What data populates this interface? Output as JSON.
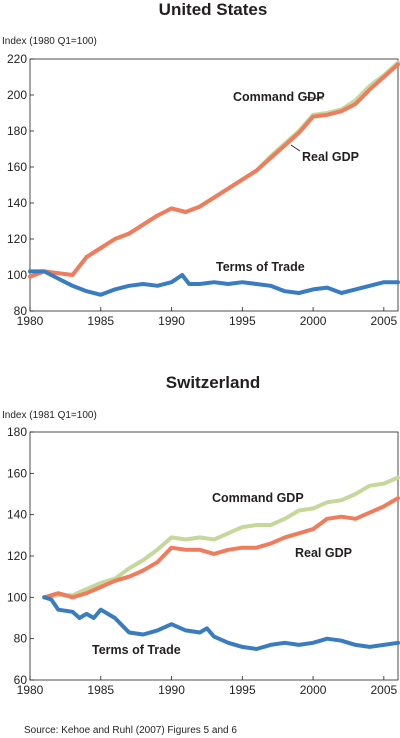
{
  "source_note": "Source: Kehoe and Ruhl (2007) Figures 5 and 6",
  "colors": {
    "command_gdp": "#c5d89a",
    "real_gdp": "#f07c5e",
    "terms_of_trade": "#3a7cc0",
    "axis": "#231f20"
  },
  "chart_data": [
    {
      "type": "line",
      "title": "United States",
      "ylabel": "Index (1980 Q1=100)",
      "xlim": [
        1980,
        2006
      ],
      "ylim": [
        80,
        220
      ],
      "x_ticks": [
        1980,
        1985,
        1990,
        1995,
        2000,
        2005
      ],
      "y_ticks": [
        80,
        100,
        120,
        140,
        160,
        180,
        200,
        220
      ],
      "grid": false,
      "series": [
        {
          "name": "Command GDP",
          "key": "command_gdp",
          "x": [
            1980,
            1981,
            1982,
            1983,
            1984,
            1985,
            1986,
            1987,
            1988,
            1989,
            1990,
            1991,
            1992,
            1993,
            1994,
            1995,
            1996,
            1997,
            1998,
            1999,
            2000,
            2001,
            2002,
            2003,
            2004,
            2005,
            2006
          ],
          "y": [
            99,
            102,
            101,
            100,
            110,
            115,
            120,
            123,
            128,
            133,
            137,
            135,
            138,
            143,
            148,
            153,
            158,
            166,
            173,
            180,
            189,
            190,
            192,
            197,
            205,
            211,
            218
          ]
        },
        {
          "name": "Real GDP",
          "key": "real_gdp",
          "x": [
            1980,
            1981,
            1982,
            1983,
            1984,
            1985,
            1986,
            1987,
            1988,
            1989,
            1990,
            1991,
            1992,
            1993,
            1994,
            1995,
            1996,
            1997,
            1998,
            1999,
            2000,
            2001,
            2002,
            2003,
            2004,
            2005,
            2006
          ],
          "y": [
            99,
            102,
            101,
            100,
            110,
            115,
            120,
            123,
            128,
            133,
            137,
            135,
            138,
            143,
            148,
            153,
            158,
            165,
            172,
            179,
            188,
            189,
            191,
            195,
            203,
            210,
            217
          ]
        },
        {
          "name": "Terms of Trade",
          "key": "terms_of_trade",
          "x": [
            1980,
            1981,
            1982,
            1983,
            1984,
            1985,
            1986,
            1987,
            1988,
            1989,
            1990,
            1990.75,
            1991.25,
            1992,
            1993,
            1994,
            1995,
            1996,
            1997,
            1998,
            1999,
            2000,
            2001,
            2002,
            2003,
            2004,
            2005,
            2006
          ],
          "y": [
            102,
            102,
            98,
            94,
            91,
            89,
            92,
            94,
            95,
            94,
            96,
            100,
            95,
            95,
            96,
            95,
            96,
            95,
            94,
            91,
            90,
            92,
            93,
            90,
            92,
            94,
            96,
            96
          ]
        }
      ],
      "annotations": [
        {
          "text": "Command GDP",
          "series": "command_gdp"
        },
        {
          "text": "Real GDP",
          "series": "real_gdp"
        },
        {
          "text": "Terms of Trade",
          "series": "terms_of_trade"
        }
      ]
    },
    {
      "type": "line",
      "title": "Switzerland",
      "ylabel": "Index (1981 Q1=100)",
      "xlim": [
        1980,
        2006
      ],
      "ylim": [
        60,
        180
      ],
      "x_ticks": [
        1980,
        1985,
        1990,
        1995,
        2000,
        2005
      ],
      "y_ticks": [
        60,
        80,
        100,
        120,
        140,
        160,
        180
      ],
      "grid": false,
      "series": [
        {
          "name": "Command GDP",
          "key": "command_gdp",
          "x": [
            1981,
            1982,
            1983,
            1984,
            1985,
            1986,
            1987,
            1988,
            1989,
            1990,
            1991,
            1992,
            1993,
            1994,
            1995,
            1996,
            1997,
            1998,
            1999,
            2000,
            2001,
            2002,
            2003,
            2004,
            2005,
            2006
          ],
          "y": [
            100,
            101,
            101,
            104,
            107,
            109,
            114,
            118,
            123,
            129,
            128,
            129,
            128,
            131,
            134,
            135,
            135,
            138,
            142,
            143,
            146,
            147,
            150,
            154,
            155,
            158
          ]
        },
        {
          "name": "Real GDP",
          "key": "real_gdp",
          "x": [
            1981,
            1982,
            1983,
            1984,
            1985,
            1986,
            1987,
            1988,
            1989,
            1990,
            1991,
            1992,
            1993,
            1994,
            1995,
            1996,
            1997,
            1998,
            1999,
            2000,
            2001,
            2002,
            2003,
            2004,
            2005,
            2006
          ],
          "y": [
            100,
            102,
            100,
            102,
            105,
            108,
            110,
            113,
            117,
            124,
            123,
            123,
            121,
            123,
            124,
            124,
            126,
            129,
            131,
            133,
            138,
            139,
            138,
            141,
            144,
            148
          ]
        },
        {
          "name": "Terms of Trade",
          "key": "terms_of_trade",
          "x": [
            1981,
            1981.5,
            1982,
            1983,
            1983.5,
            1984,
            1984.5,
            1985,
            1986,
            1987,
            1988,
            1989,
            1990,
            1991,
            1992,
            1992.5,
            1993,
            1994,
            1995,
            1996,
            1997,
            1998,
            1999,
            2000,
            2001,
            2002,
            2003,
            2004,
            2005,
            2006
          ],
          "y": [
            100,
            99,
            94,
            93,
            90,
            92,
            90,
            94,
            90,
            83,
            82,
            84,
            87,
            84,
            83,
            85,
            81,
            78,
            76,
            75,
            77,
            78,
            77,
            78,
            80,
            79,
            77,
            76,
            77,
            78
          ]
        }
      ],
      "annotations": [
        {
          "text": "Command GDP",
          "series": "command_gdp"
        },
        {
          "text": "Real GDP",
          "series": "real_gdp"
        },
        {
          "text": "Terms of Trade",
          "series": "terms_of_trade"
        }
      ]
    }
  ]
}
